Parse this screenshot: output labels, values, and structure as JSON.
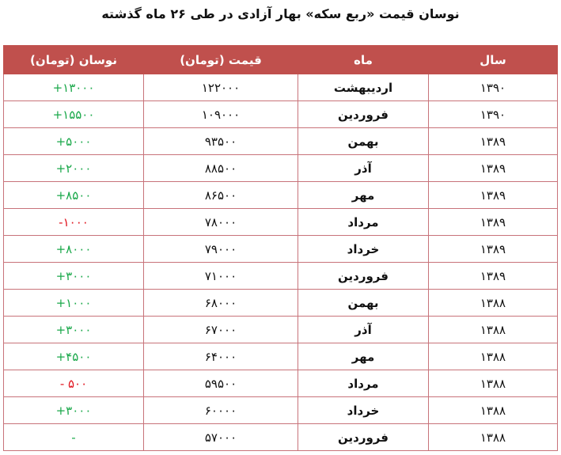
{
  "title": "نوسان قیمت «ربع سکه» بهار آزادی در طی ۲۶ ماه گذشته",
  "colors": {
    "header": "#c0504d",
    "up": "#1aa84a",
    "down": "#e0141e"
  },
  "headers": {
    "year": "سال",
    "month": "ماه",
    "price": "قیمت (تومان)",
    "change": "نوسان (تومان)"
  },
  "rows": [
    {
      "year": "۱۳۹۰",
      "month": "اردیبهشت",
      "price": "۱۲۲۰۰۰",
      "change": "+۱۳۰۰۰",
      "trend": "up"
    },
    {
      "year": "۱۳۹۰",
      "month": "فروردین",
      "price": "۱۰۹۰۰۰",
      "change": "+۱۵۵۰۰",
      "trend": "up"
    },
    {
      "year": "۱۳۸۹",
      "month": "بهمن",
      "price": "۹۳۵۰۰",
      "change": "+۵۰۰۰",
      "trend": "up"
    },
    {
      "year": "۱۳۸۹",
      "month": "آذر",
      "price": "۸۸۵۰۰",
      "change": "+۲۰۰۰",
      "trend": "up"
    },
    {
      "year": "۱۳۸۹",
      "month": "مهر",
      "price": "۸۶۵۰۰",
      "change": "+۸۵۰۰",
      "trend": "up"
    },
    {
      "year": "۱۳۸۹",
      "month": "مرداد",
      "price": "۷۸۰۰۰",
      "change": "-۱۰۰۰",
      "trend": "down"
    },
    {
      "year": "۱۳۸۹",
      "month": "خرداد",
      "price": "۷۹۰۰۰",
      "change": "+۸۰۰۰",
      "trend": "up"
    },
    {
      "year": "۱۳۸۹",
      "month": "فروردین",
      "price": "۷۱۰۰۰",
      "change": "+۳۰۰۰",
      "trend": "up"
    },
    {
      "year": "۱۳۸۸",
      "month": "بهمن",
      "price": "۶۸۰۰۰",
      "change": "+۱۰۰۰",
      "trend": "up"
    },
    {
      "year": "۱۳۸۸",
      "month": "آذر",
      "price": "۶۷۰۰۰",
      "change": "+۳۰۰۰",
      "trend": "up"
    },
    {
      "year": "۱۳۸۸",
      "month": "مهر",
      "price": "۶۴۰۰۰",
      "change": "+۴۵۰۰",
      "trend": "up"
    },
    {
      "year": "۱۳۸۸",
      "month": "مرداد",
      "price": "۵۹۵۰۰",
      "change": "- ۵۰۰",
      "trend": "down"
    },
    {
      "year": "۱۳۸۸",
      "month": "خرداد",
      "price": "۶۰۰۰۰",
      "change": "+۳۰۰۰",
      "trend": "up"
    },
    {
      "year": "۱۳۸۸",
      "month": "فروردین",
      "price": "۵۷۰۰۰",
      "change": "-",
      "trend": "up"
    }
  ]
}
